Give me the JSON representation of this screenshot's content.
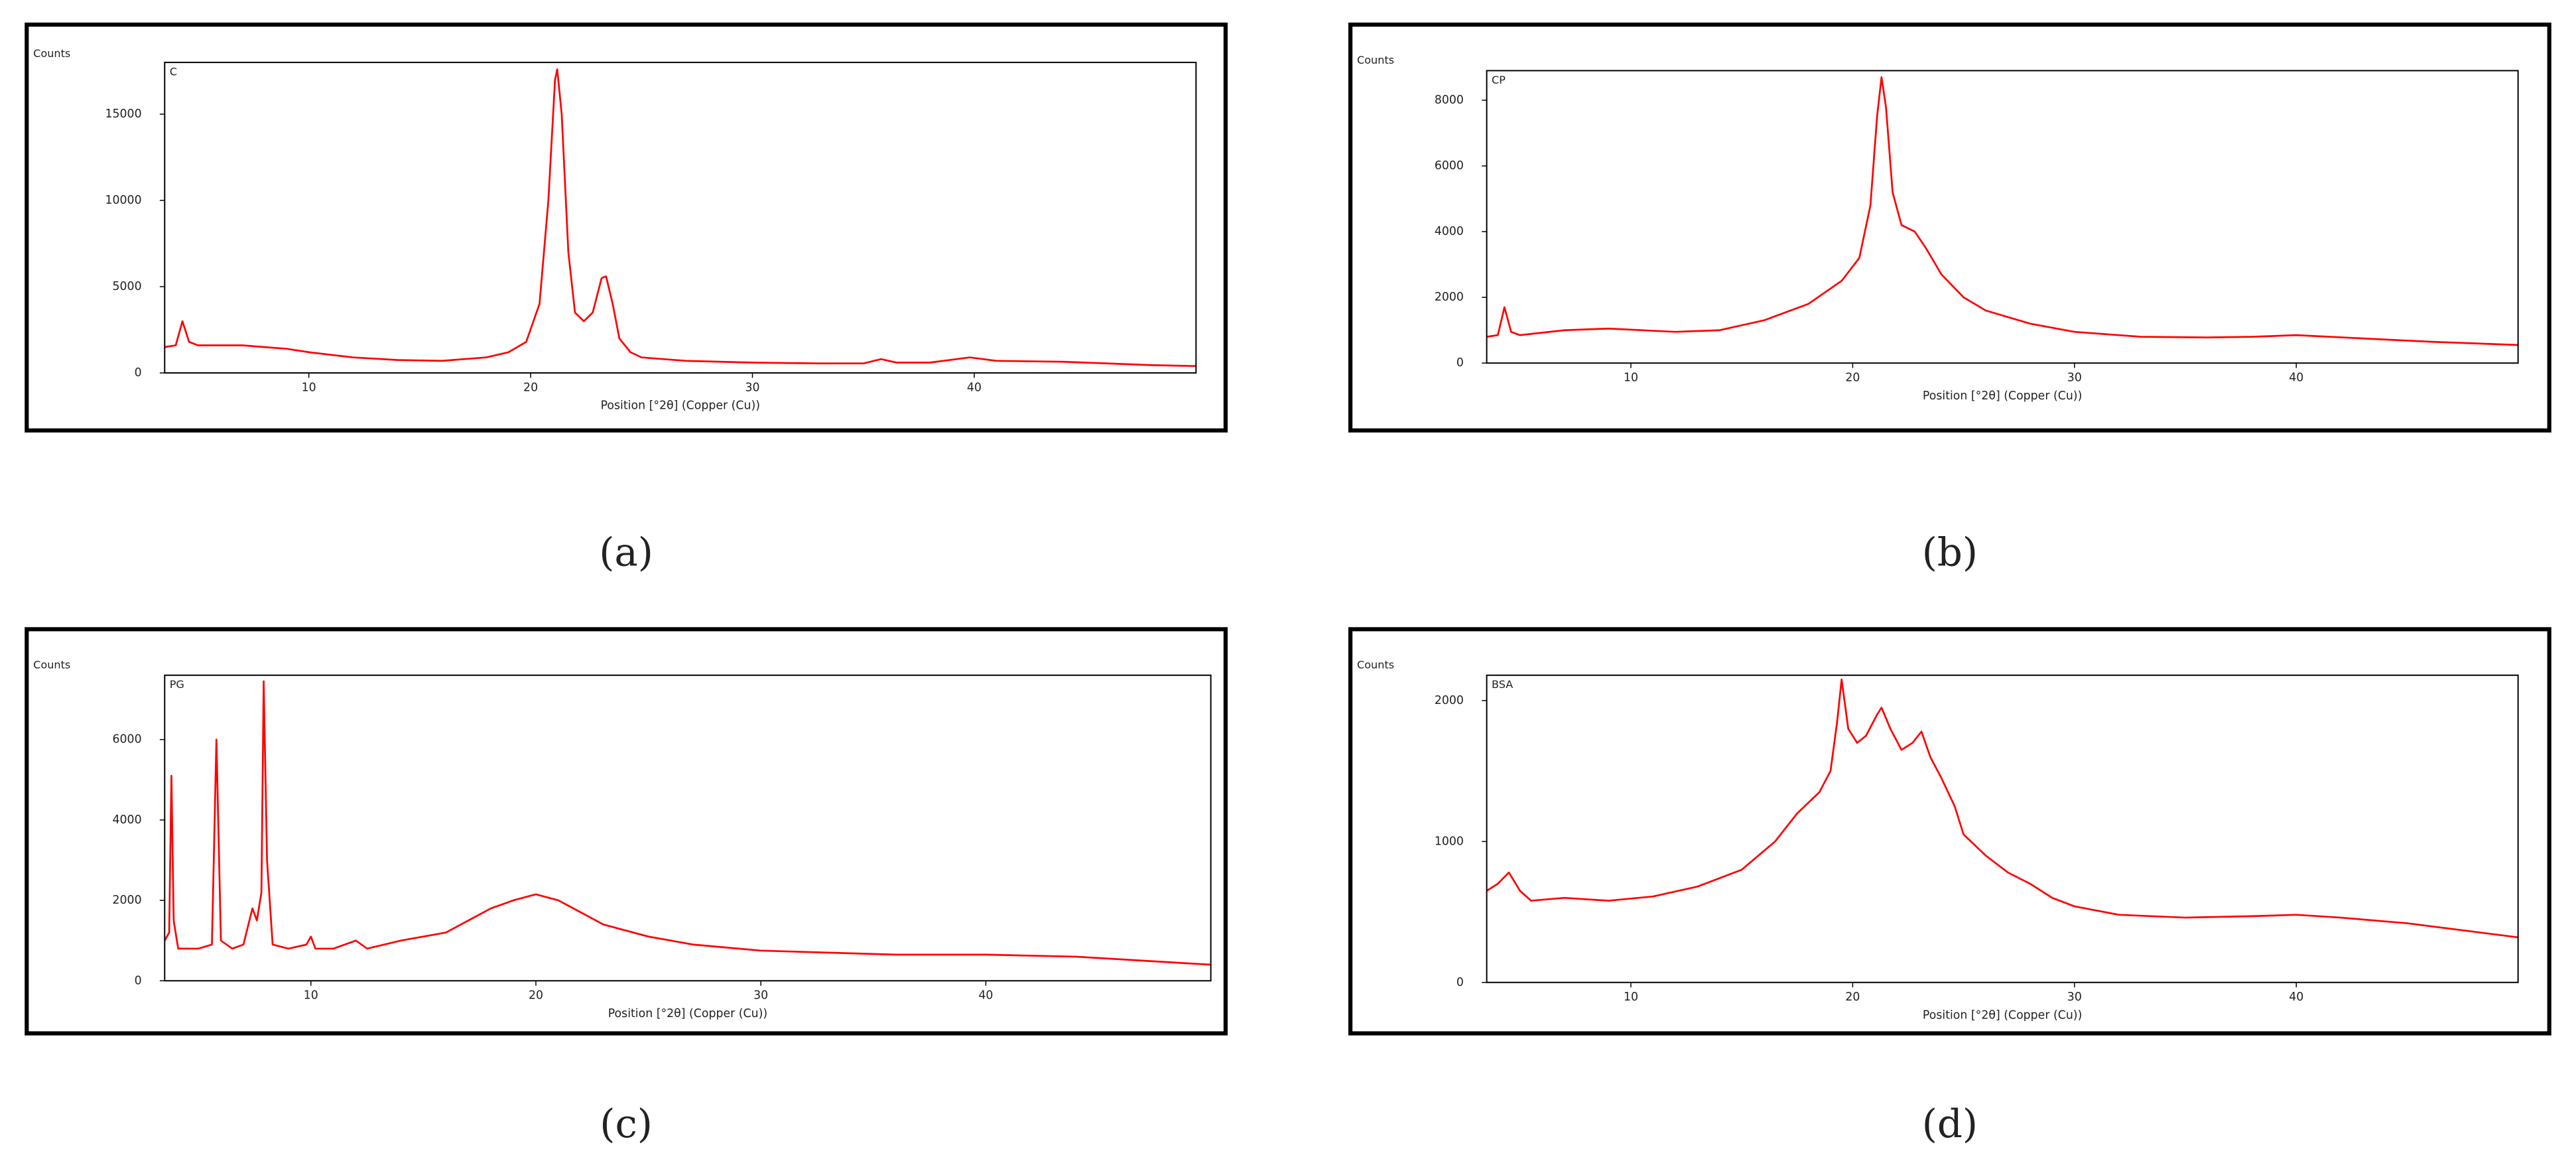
{
  "chart_data": [
    {
      "type": "line",
      "title": "C",
      "caption": "(a)",
      "ylabel": "Counts",
      "xlabel": "Position [°2θ] (Copper (Cu))",
      "color": "#ff0000",
      "xlim": [
        3.5,
        50
      ],
      "ylim": [
        0,
        18000
      ],
      "xticks": [
        10,
        20,
        30,
        40
      ],
      "yticks": [
        0,
        5000,
        10000,
        15000
      ],
      "x": [
        3.5,
        4,
        4.3,
        4.6,
        5,
        7,
        8,
        9,
        10,
        12,
        14,
        16,
        18,
        19,
        19.8,
        20.4,
        20.8,
        21.1,
        21.2,
        21.4,
        21.7,
        22,
        22.4,
        22.8,
        23.2,
        23.4,
        23.7,
        24,
        24.5,
        25,
        27,
        30,
        33,
        35,
        35.8,
        36.5,
        38,
        39.8,
        41,
        44,
        46,
        48,
        50
      ],
      "values": [
        1500,
        1600,
        3000,
        1800,
        1600,
        1600,
        1500,
        1400,
        1200,
        900,
        750,
        700,
        900,
        1200,
        1800,
        4000,
        10000,
        17000,
        17600,
        15000,
        7000,
        3500,
        3000,
        3500,
        5500,
        5600,
        4000,
        2000,
        1200,
        900,
        700,
        600,
        550,
        550,
        800,
        600,
        600,
        900,
        700,
        650,
        550,
        450,
        400
      ]
    },
    {
      "type": "line",
      "title": "CP",
      "caption": "(b)",
      "ylabel": "Counts",
      "xlabel": "Position [°2θ] (Copper (Cu))",
      "color": "#ff0000",
      "xlim": [
        3.5,
        50
      ],
      "ylim": [
        0,
        8900
      ],
      "xticks": [
        10,
        20,
        30,
        40
      ],
      "yticks": [
        0,
        2000,
        4000,
        6000,
        8000
      ],
      "x": [
        3.5,
        4,
        4.3,
        4.6,
        5,
        7,
        9,
        12,
        14,
        16,
        18,
        19.5,
        20.3,
        20.8,
        21.1,
        21.3,
        21.5,
        21.8,
        22.2,
        22.8,
        23.3,
        24,
        25,
        26,
        28,
        30,
        33,
        36,
        38,
        40,
        43,
        46,
        50
      ],
      "values": [
        800,
        850,
        1700,
        950,
        850,
        1000,
        1050,
        950,
        1000,
        1300,
        1800,
        2500,
        3200,
        4800,
        7500,
        8700,
        7800,
        5200,
        4200,
        4000,
        3500,
        2700,
        2000,
        1600,
        1200,
        950,
        800,
        780,
        800,
        850,
        750,
        650,
        550
      ]
    },
    {
      "type": "line",
      "title": "PG",
      "caption": "(c)",
      "ylabel": "Counts",
      "xlabel": "Position [°2θ] (Copper (Cu))",
      "color": "#ff0000",
      "xlim": [
        3.5,
        50
      ],
      "ylim": [
        0,
        7600
      ],
      "xticks": [
        10,
        20,
        30,
        40
      ],
      "yticks": [
        0,
        2000,
        4000,
        6000
      ],
      "x": [
        3.5,
        3.7,
        3.8,
        3.9,
        4.1,
        5,
        5.6,
        5.8,
        6.0,
        6.5,
        7,
        7.4,
        7.6,
        7.8,
        7.9,
        8.05,
        8.3,
        9,
        9.8,
        10,
        10.2,
        11,
        12,
        12.5,
        14,
        16,
        17,
        18,
        19,
        20,
        21,
        22,
        23,
        25,
        27,
        30,
        33,
        36,
        40,
        44,
        47,
        50
      ],
      "values": [
        1000,
        1200,
        5100,
        1500,
        800,
        800,
        900,
        6000,
        1000,
        800,
        900,
        1800,
        1500,
        2200,
        7450,
        3000,
        900,
        800,
        900,
        1100,
        800,
        800,
        1000,
        800,
        1000,
        1200,
        1500,
        1800,
        2000,
        2150,
        2000,
        1700,
        1400,
        1100,
        900,
        750,
        700,
        650,
        650,
        600,
        500,
        400
      ]
    },
    {
      "type": "line",
      "title": "BSA",
      "caption": "(d)",
      "ylabel": "Counts",
      "xlabel": "Position [°2θ] (Copper (Cu))",
      "color": "#ff0000",
      "xlim": [
        3.5,
        50
      ],
      "ylim": [
        0,
        2180
      ],
      "xticks": [
        10,
        20,
        30,
        40
      ],
      "yticks": [
        0,
        1000,
        2000
      ],
      "x": [
        3.5,
        4,
        4.5,
        5,
        5.5,
        7,
        9,
        11,
        13,
        15,
        16.5,
        17.5,
        18.5,
        19,
        19.3,
        19.5,
        19.8,
        20.2,
        20.6,
        21.1,
        21.3,
        21.7,
        22.2,
        22.7,
        23.1,
        23.5,
        24,
        24.6,
        25,
        26,
        27,
        28,
        29,
        30,
        32,
        35,
        38,
        40,
        42,
        45,
        48,
        50
      ],
      "values": [
        650,
        700,
        780,
        650,
        580,
        600,
        580,
        610,
        680,
        800,
        1000,
        1200,
        1350,
        1500,
        1850,
        2150,
        1800,
        1700,
        1750,
        1900,
        1950,
        1800,
        1650,
        1700,
        1780,
        1600,
        1450,
        1250,
        1050,
        900,
        780,
        700,
        600,
        540,
        480,
        460,
        470,
        480,
        460,
        420,
        360,
        320
      ]
    }
  ]
}
